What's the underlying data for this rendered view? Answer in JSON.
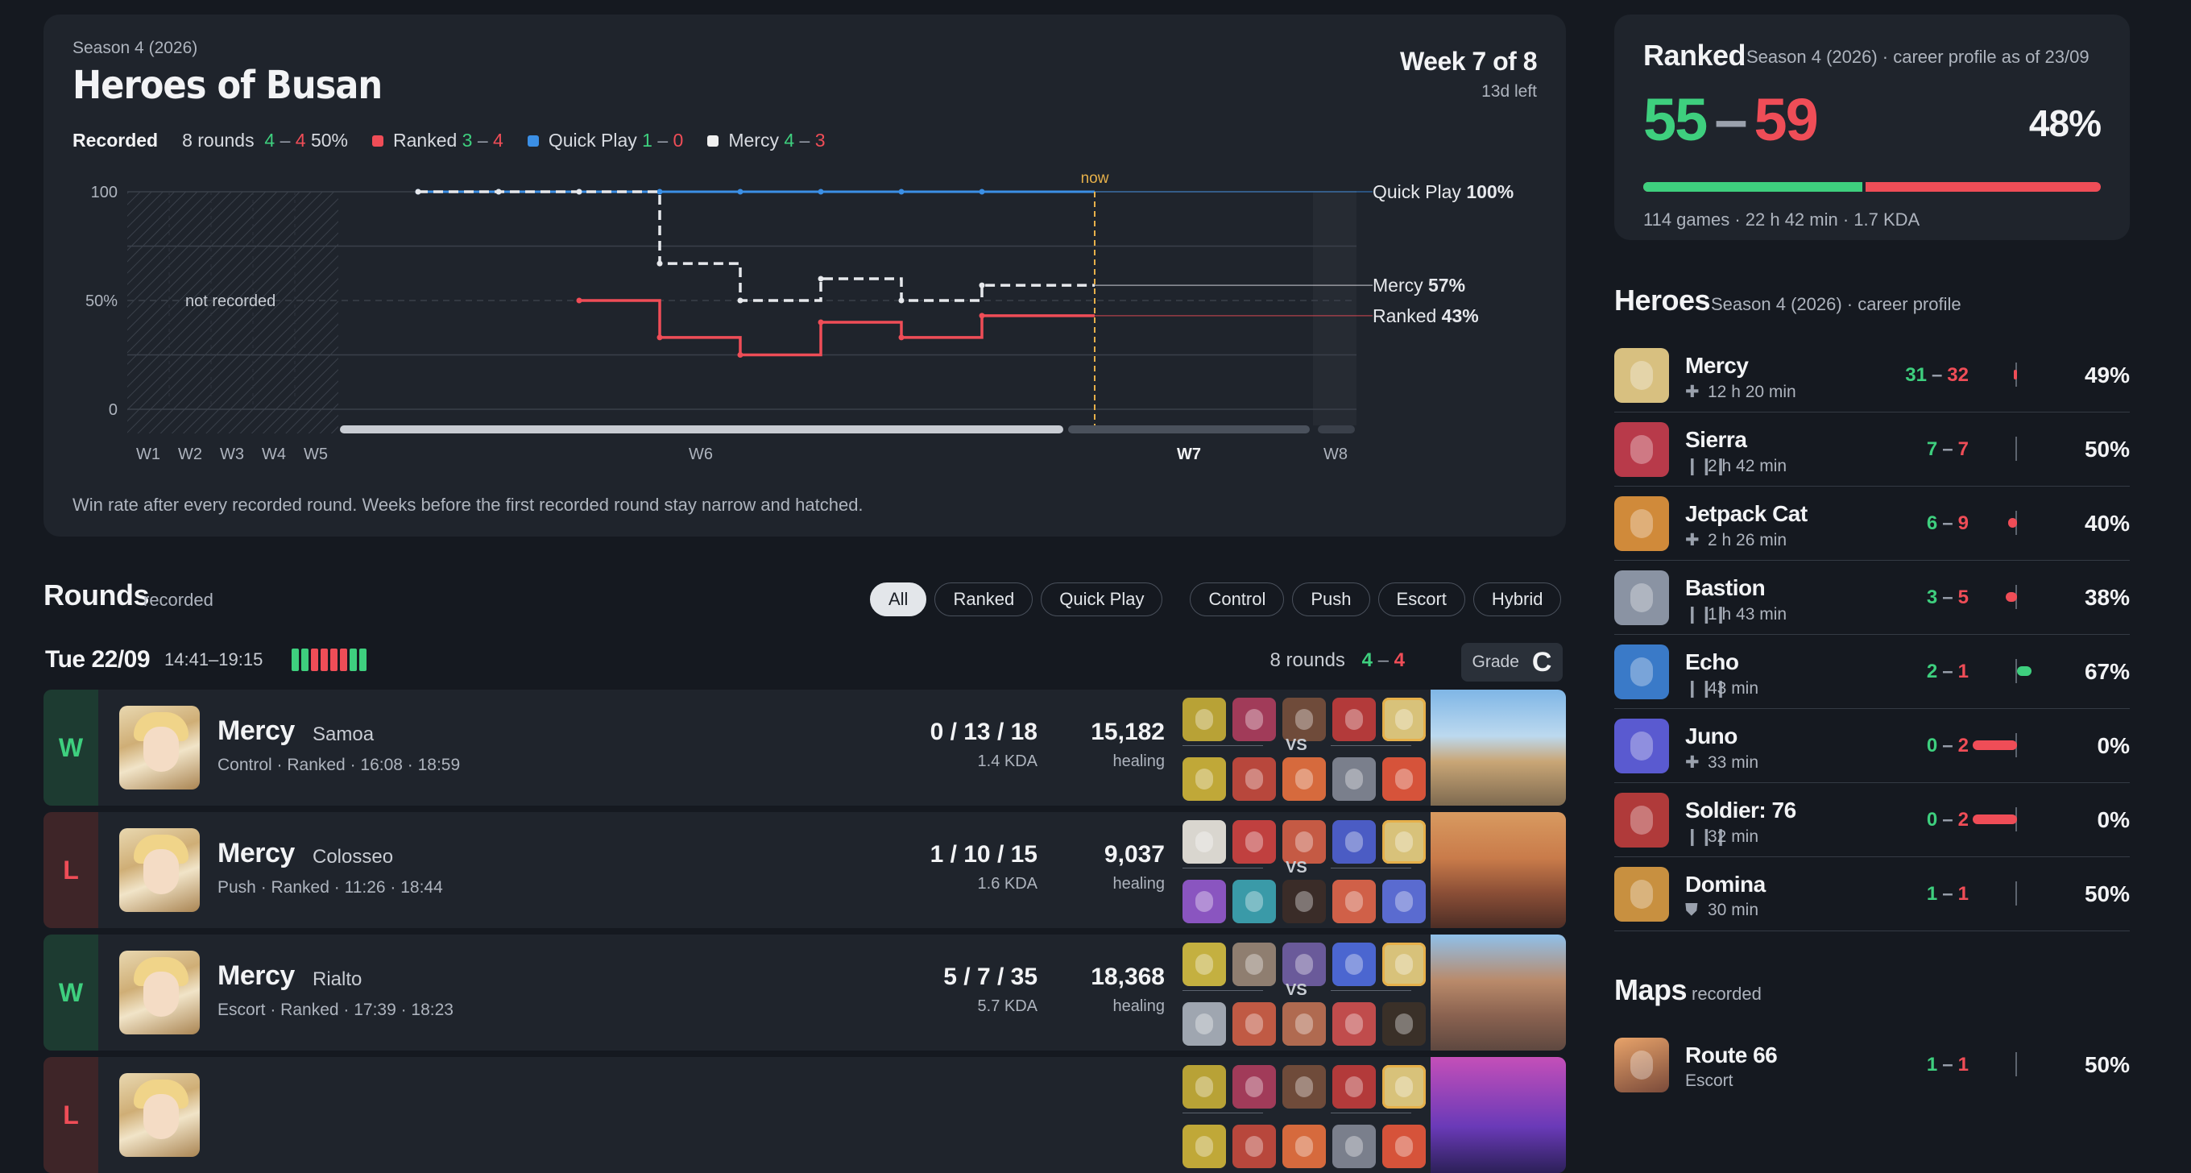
{
  "season_card": {
    "season_label": "Season 4 (2026)",
    "title": "Heroes of Busan",
    "week_label": "Week 7 of 8",
    "time_left": "13d left",
    "legend": {
      "recorded_label": "Recorded",
      "rounds_text": "8 rounds",
      "rounds_w": "4",
      "rounds_l": "4",
      "rounds_pct": "50%",
      "ranked_label": "Ranked",
      "ranked_w": "3",
      "ranked_l": "4",
      "qp_label": "Quick Play",
      "qp_w": "1",
      "qp_l": "0",
      "mercy_label": "Mercy",
      "mercy_w": "4",
      "mercy_l": "3"
    },
    "caption": "Win rate after every recorded round. Weeks before the first recorded round stay narrow and hatched."
  },
  "chart_data": {
    "type": "line",
    "y_ticks": [
      "100",
      "50%",
      "0"
    ],
    "ylim": [
      0,
      100
    ],
    "x_ticks": [
      "W1",
      "W2",
      "W3",
      "W4",
      "W5",
      "W6",
      "W7",
      "W8"
    ],
    "current_week": "W7",
    "now_label": "now",
    "not_recorded_label": "not recorded",
    "series": [
      {
        "name": "Quick Play",
        "end_label": "100%",
        "color": "#3b8fe5",
        "values": [
          100,
          100,
          100,
          100,
          100,
          100,
          100,
          100,
          100
        ]
      },
      {
        "name": "Mercy",
        "end_label": "57%",
        "color": "#e6e8ec",
        "values": [
          100,
          100,
          100,
          67,
          50,
          60,
          50,
          57,
          57
        ]
      },
      {
        "name": "Ranked",
        "end_label": "43%",
        "color": "#ef4d57",
        "values": [
          null,
          null,
          50,
          33,
          25,
          40,
          33,
          43,
          43
        ]
      }
    ]
  },
  "rounds": {
    "title": "Rounds",
    "subtitle": "recorded",
    "filters": [
      "All",
      "Ranked",
      "Quick Play",
      "Control",
      "Push",
      "Escort",
      "Hybrid"
    ],
    "day": {
      "date": "Tue 22/09",
      "time": "14:41–19:15",
      "rounds_text": "8 rounds",
      "w": "4",
      "l": "4",
      "grade_label": "Grade",
      "grade": "C",
      "results": [
        "W",
        "W",
        "L",
        "L",
        "L",
        "L",
        "W",
        "W"
      ]
    },
    "items": [
      {
        "result": "W",
        "hero": "Mercy",
        "map": "Samoa",
        "meta": "Control · Ranked · 16:08 · 18:59",
        "kda": "0 / 13 / 18",
        "kda_ratio": "1.4 KDA",
        "healing": "15,182",
        "healing_label": "healing",
        "vs": "VS"
      },
      {
        "result": "L",
        "hero": "Mercy",
        "map": "Colosseo",
        "meta": "Push · Ranked · 11:26 · 18:44",
        "kda": "1 / 10 / 15",
        "kda_ratio": "1.6 KDA",
        "healing": "9,037",
        "healing_label": "healing",
        "vs": "VS"
      },
      {
        "result": "W",
        "hero": "Mercy",
        "map": "Rialto",
        "meta": "Escort · Ranked · 17:39 · 18:23",
        "kda": "5 / 7 / 35",
        "kda_ratio": "5.7 KDA",
        "healing": "18,368",
        "healing_label": "healing",
        "vs": "VS"
      },
      {
        "result": "L",
        "hero": "",
        "map": "",
        "meta": "",
        "kda": "",
        "kda_ratio": "",
        "healing": "",
        "healing_label": "",
        "vs": ""
      }
    ]
  },
  "ranked_card": {
    "title": "Ranked",
    "subtitle": "Season 4 (2026) · career profile as of 23/09",
    "wins": "55",
    "losses": "59",
    "pct": "48%",
    "footer": "114 games · 22 h 42 min · 1.7 KDA"
  },
  "heroes": {
    "title": "Heroes",
    "subtitle": "Season 4 (2026) · career profile",
    "items": [
      {
        "name": "Mercy",
        "role_icon": "plus-icon",
        "time": "12 h 20 min",
        "w": "31",
        "l": "32",
        "pct": "49%"
      },
      {
        "name": "Sierra",
        "role_icon": "bars-icon",
        "time": "2 h 42 min",
        "w": "7",
        "l": "7",
        "pct": "50%"
      },
      {
        "name": "Jetpack Cat",
        "role_icon": "plus-icon",
        "time": "2 h 26 min",
        "w": "6",
        "l": "9",
        "pct": "40%"
      },
      {
        "name": "Bastion",
        "role_icon": "bars-icon",
        "time": "1 h 43 min",
        "w": "3",
        "l": "5",
        "pct": "38%"
      },
      {
        "name": "Echo",
        "role_icon": "bars-icon",
        "time": "43 min",
        "w": "2",
        "l": "1",
        "pct": "67%"
      },
      {
        "name": "Juno",
        "role_icon": "plus-icon",
        "time": "33 min",
        "w": "0",
        "l": "2",
        "pct": "0%"
      },
      {
        "name": "Soldier: 76",
        "role_icon": "bars-icon",
        "time": "32 min",
        "w": "0",
        "l": "2",
        "pct": "0%"
      },
      {
        "name": "Domina",
        "role_icon": "shield-icon",
        "time": "30 min",
        "w": "1",
        "l": "1",
        "pct": "50%"
      }
    ]
  },
  "maps": {
    "title": "Maps",
    "subtitle": "recorded",
    "items": [
      {
        "name": "Route 66",
        "mode": "Escort",
        "w": "1",
        "l": "1",
        "pct": "50%"
      }
    ]
  }
}
